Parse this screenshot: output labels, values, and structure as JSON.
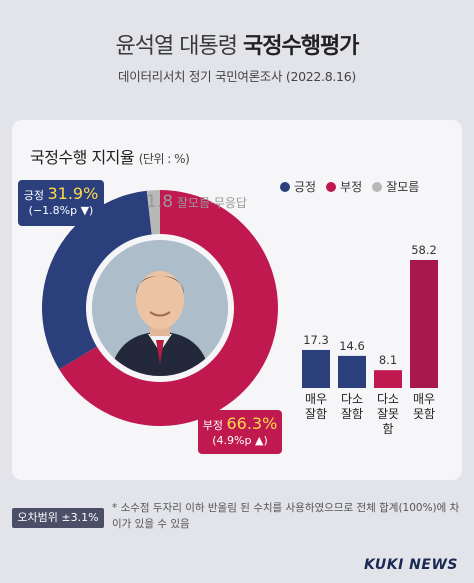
{
  "header": {
    "title_light": "윤석열 대통령",
    "title_bold": "국정수행평가",
    "subtitle": "데이터리서치 정기 국민여론조사 (2022.8.16)"
  },
  "card": {
    "title": "국정수행 지지율",
    "unit": "(단위 : %)"
  },
  "legend": [
    {
      "label": "긍정",
      "color": "#2b3f7d"
    },
    {
      "label": "부정",
      "color": "#c0194f"
    },
    {
      "label": "잘모름",
      "color": "#b8b8b8"
    }
  ],
  "callouts": {
    "positive": {
      "label": "긍정",
      "value": "31.9%",
      "change": "(−1.8%p ▼)"
    },
    "negative": {
      "label": "부정",
      "value": "66.3%",
      "change": "(4.9%p ▲)"
    },
    "dontknow": {
      "value": "1.8",
      "label": "잘모름·무응답"
    }
  },
  "chart_data": [
    {
      "type": "pie",
      "title": "국정수행 지지율",
      "categories": [
        "긍정",
        "부정",
        "잘모름·무응답"
      ],
      "values": [
        31.9,
        66.3,
        1.8
      ],
      "colors": [
        "#2b3f7d",
        "#c0194f",
        "#b8b8b8"
      ]
    },
    {
      "type": "bar",
      "categories": [
        "매우 잘함",
        "다소 잘함",
        "다소 잘못함",
        "매우 못함"
      ],
      "category_lines": [
        [
          "매우",
          "잘함"
        ],
        [
          "다소",
          "잘함"
        ],
        [
          "다소",
          "잘못함"
        ],
        [
          "매우",
          "못함"
        ]
      ],
      "values": [
        17.3,
        14.6,
        8.1,
        58.2
      ],
      "value_labels": [
        "17.3",
        "14.6",
        "8.1",
        "58.2"
      ],
      "colors": [
        "#2b3f7d",
        "#2b3f7d",
        "#c0194f",
        "#a8184c"
      ],
      "ylim": [
        0,
        58.2
      ]
    }
  ],
  "footer": {
    "margin_label": "오차범위 ±3.1%",
    "note": "* 소수점 두자리 이하 반올림 된 수치를 사용하였으므로 전체 합계(100%)에 차이가 있을 수 있음",
    "brand": "KUKI NEWS"
  }
}
